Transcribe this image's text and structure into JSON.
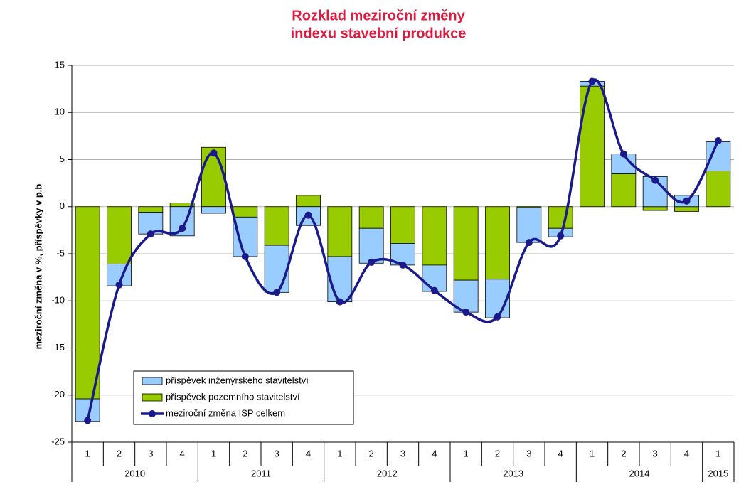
{
  "chart_data": {
    "type": "bar",
    "title": [
      "Rozklad meziroční změny",
      "indexu stavební produkce"
    ],
    "y_label": "meziroční změna v %, příspěvky v p.b",
    "years": [
      "2010",
      "2011",
      "2012",
      "2013",
      "2014",
      "2015"
    ],
    "quarters": [
      [
        "1",
        "2",
        "3",
        "4"
      ],
      [
        "1",
        "2",
        "3",
        "4"
      ],
      [
        "1",
        "2",
        "3",
        "4"
      ],
      [
        "1",
        "2",
        "3",
        "4"
      ],
      [
        "1",
        "2",
        "3",
        "4"
      ],
      [
        "1"
      ]
    ],
    "series": [
      {
        "name": "příspěvek inženýrského stavitelství",
        "type": "bar",
        "color": "#99ccff",
        "values": [
          -2.4,
          -2.3,
          -2.3,
          -3.1,
          -0.7,
          -4.2,
          -5.0,
          -2.0,
          -4.8,
          -3.7,
          -2.3,
          -2.8,
          -3.4,
          -4.1,
          -3.7,
          -0.9,
          0.5,
          2.1,
          3.2,
          1.2,
          3.1
        ]
      },
      {
        "name": "příspěvek pozemního stavitelství",
        "type": "bar",
        "color": "#99cc00",
        "values": [
          -20.4,
          -6.1,
          -0.6,
          0.4,
          6.3,
          -1.1,
          -4.1,
          1.2,
          -5.3,
          -2.3,
          -3.9,
          -6.2,
          -7.8,
          -7.7,
          -0.1,
          -2.3,
          12.8,
          3.5,
          -0.4,
          -0.5,
          3.8
        ]
      },
      {
        "name": "meziroční změna ISP celkem",
        "type": "line",
        "color": "#1a1a8c",
        "values": [
          -22.7,
          -8.3,
          -2.9,
          -2.3,
          5.7,
          -5.3,
          -9.1,
          -0.9,
          -10.1,
          -5.9,
          -6.2,
          -8.9,
          -11.2,
          -11.7,
          -3.8,
          -3.1,
          13.3,
          5.6,
          2.8,
          0.6,
          7.0
        ]
      }
    ],
    "ylim": [
      -25,
      15
    ],
    "yticks": [
      -25,
      -20,
      -15,
      -10,
      -5,
      0,
      5,
      10,
      15
    ],
    "grid": true
  }
}
